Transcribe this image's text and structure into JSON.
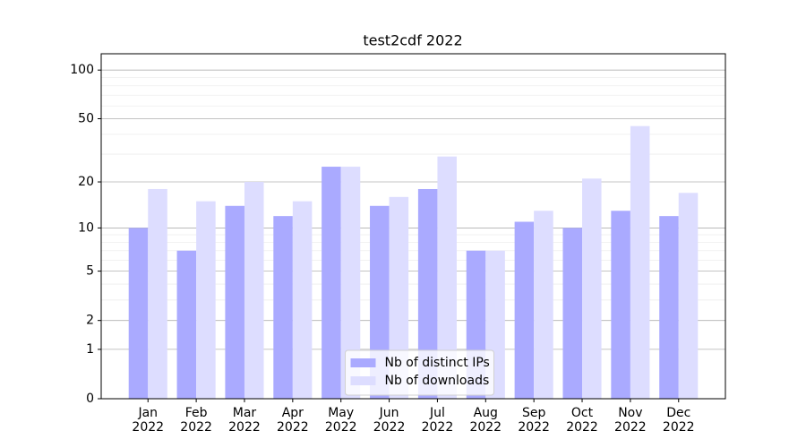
{
  "chart_data": {
    "type": "bar",
    "title": "test2cdf 2022",
    "categories": [
      "Jan\n2022",
      "Feb\n2022",
      "Mar\n2022",
      "Apr\n2022",
      "May\n2022",
      "Jun\n2022",
      "Jul\n2022",
      "Aug\n2022",
      "Sep\n2022",
      "Oct\n2022",
      "Nov\n2022",
      "Dec\n2022"
    ],
    "series": [
      {
        "name": "Nb of distinct IPs",
        "color": "#aaaaff",
        "values": [
          10,
          7,
          14,
          12,
          25,
          14,
          18,
          7,
          11,
          10,
          13,
          12
        ]
      },
      {
        "name": "Nb of downloads",
        "color": "#ddddff",
        "values": [
          18,
          15,
          20,
          15,
          25,
          16,
          29,
          7,
          13,
          21,
          45,
          17
        ]
      }
    ],
    "yscale": "log1p",
    "ylim": [
      0,
      126
    ],
    "yticks": [
      0,
      1,
      2,
      5,
      10,
      20,
      50,
      100
    ],
    "yminorticks": [
      3,
      4,
      6,
      7,
      8,
      9,
      30,
      40,
      60,
      70,
      80,
      90
    ],
    "grid": true,
    "legend": "lower center"
  }
}
